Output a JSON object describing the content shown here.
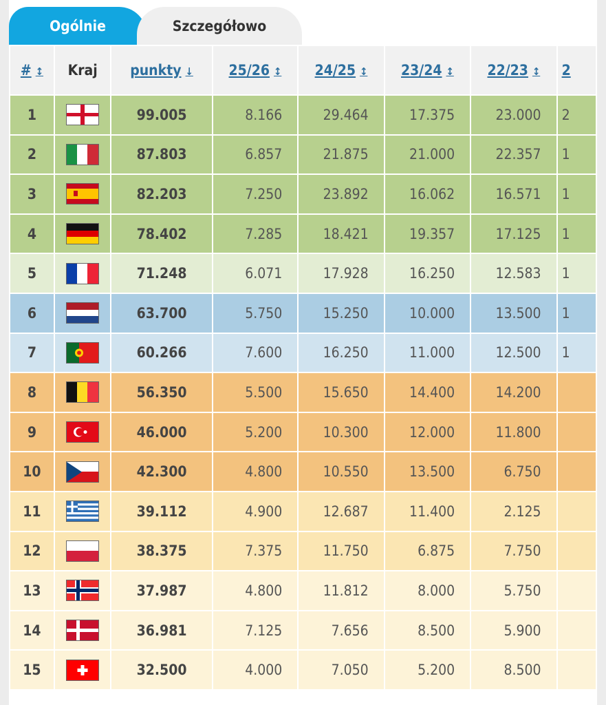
{
  "tabs": [
    {
      "label": "Ogólnie",
      "active": false
    },
    {
      "label": "Szczegółowo",
      "active": true
    }
  ],
  "headers": {
    "rank": "#",
    "country": "Kraj",
    "points": "punkty",
    "s1": "25/26",
    "s2": "24/25",
    "s3": "23/24",
    "s4": "22/23",
    "s5_partial": "2"
  },
  "sort_icons": {
    "rank": "↕",
    "points": "↓",
    "seasons": "↕"
  },
  "tier_colors": {
    "cl": "#b7d08e",
    "el": "#e3edd3",
    "ecl1": "#abcde3",
    "ecl2": "#d0e3ef",
    "q1": "#f3c27e",
    "q2": "#fbe6b3",
    "q3": "#fdf3d8"
  },
  "rows": [
    {
      "rank": "1",
      "flag": "england",
      "points": "99.005",
      "s": [
        "8.166",
        "29.464",
        "17.375",
        "23.000"
      ],
      "cut": "2",
      "tier": "cl"
    },
    {
      "rank": "2",
      "flag": "italy",
      "points": "87.803",
      "s": [
        "6.857",
        "21.875",
        "21.000",
        "22.357"
      ],
      "cut": "1",
      "tier": "cl"
    },
    {
      "rank": "3",
      "flag": "spain",
      "points": "82.203",
      "s": [
        "7.250",
        "23.892",
        "16.062",
        "16.571"
      ],
      "cut": "1",
      "tier": "cl"
    },
    {
      "rank": "4",
      "flag": "germany",
      "points": "78.402",
      "s": [
        "7.285",
        "18.421",
        "19.357",
        "17.125"
      ],
      "cut": "1",
      "tier": "cl"
    },
    {
      "rank": "5",
      "flag": "france",
      "points": "71.248",
      "s": [
        "6.071",
        "17.928",
        "16.250",
        "12.583"
      ],
      "cut": "1",
      "tier": "el"
    },
    {
      "rank": "6",
      "flag": "netherlands",
      "points": "63.700",
      "s": [
        "5.750",
        "15.250",
        "10.000",
        "13.500"
      ],
      "cut": "1",
      "tier": "ecl1"
    },
    {
      "rank": "7",
      "flag": "portugal",
      "points": "60.266",
      "s": [
        "7.600",
        "16.250",
        "11.000",
        "12.500"
      ],
      "cut": "1",
      "tier": "ecl2"
    },
    {
      "rank": "8",
      "flag": "belgium",
      "points": "56.350",
      "s": [
        "5.500",
        "15.650",
        "14.400",
        "14.200"
      ],
      "cut": "",
      "tier": "q1"
    },
    {
      "rank": "9",
      "flag": "turkey",
      "points": "46.000",
      "s": [
        "5.200",
        "10.300",
        "12.000",
        "11.800"
      ],
      "cut": "",
      "tier": "q1"
    },
    {
      "rank": "10",
      "flag": "czechia",
      "points": "42.300",
      "s": [
        "4.800",
        "10.550",
        "13.500",
        "6.750"
      ],
      "cut": "",
      "tier": "q1"
    },
    {
      "rank": "11",
      "flag": "greece",
      "points": "39.112",
      "s": [
        "4.900",
        "12.687",
        "11.400",
        "2.125"
      ],
      "cut": "",
      "tier": "q2"
    },
    {
      "rank": "12",
      "flag": "poland",
      "points": "38.375",
      "s": [
        "7.375",
        "11.750",
        "6.875",
        "7.750"
      ],
      "cut": "",
      "tier": "q2"
    },
    {
      "rank": "13",
      "flag": "norway",
      "points": "37.987",
      "s": [
        "4.800",
        "11.812",
        "8.000",
        "5.750"
      ],
      "cut": "",
      "tier": "q3"
    },
    {
      "rank": "14",
      "flag": "denmark",
      "points": "36.981",
      "s": [
        "7.125",
        "7.656",
        "8.500",
        "5.900"
      ],
      "cut": "",
      "tier": "q3"
    },
    {
      "rank": "15",
      "flag": "switzerland",
      "points": "32.500",
      "s": [
        "4.000",
        "7.050",
        "5.200",
        "8.500"
      ],
      "cut": "",
      "tier": "q3"
    }
  ]
}
